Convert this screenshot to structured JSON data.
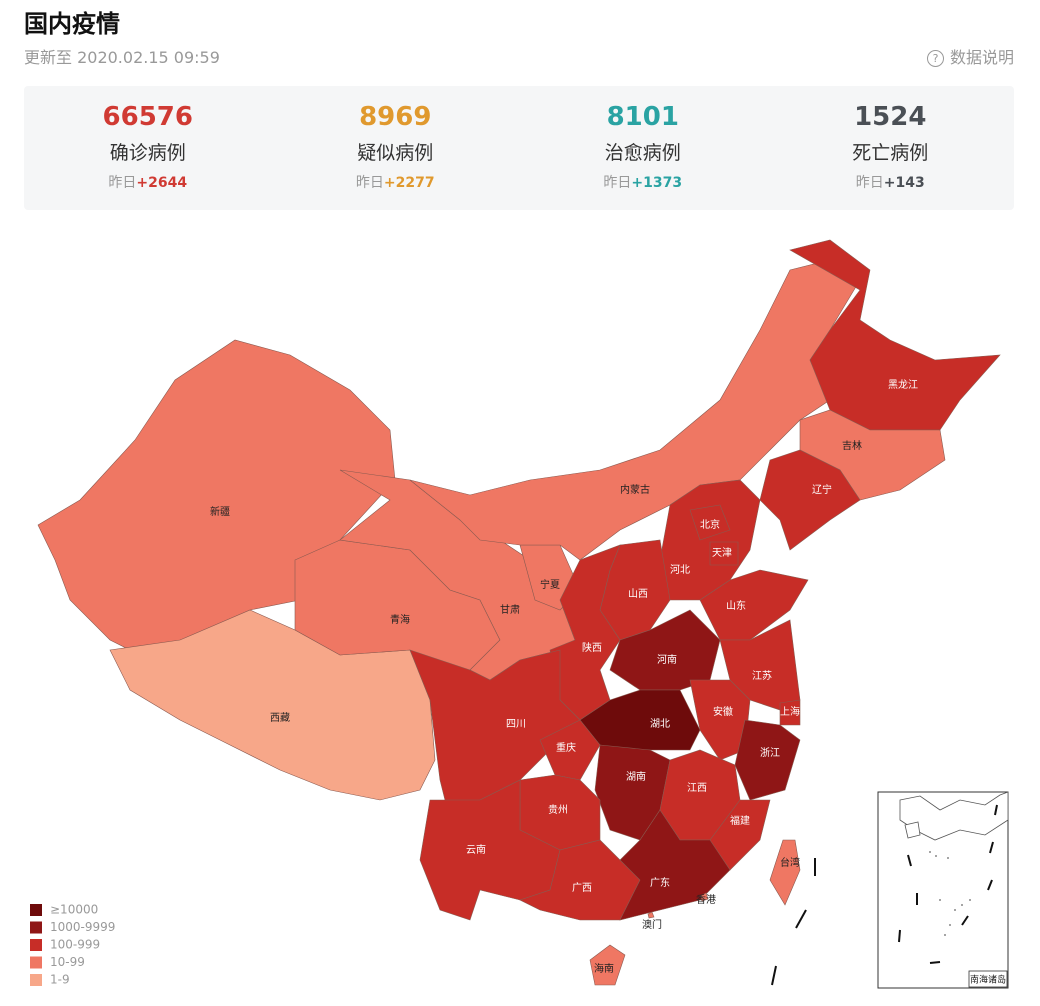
{
  "header": {
    "title": "国内疫情",
    "updated": "更新至 2020.02.15 09:59",
    "help": "数据说明"
  },
  "stats": [
    {
      "value": 66576,
      "label": "确诊病例",
      "prefix": "昨日",
      "delta": "+2644",
      "color": "#d03a33"
    },
    {
      "value": 8969,
      "label": "疑似病例",
      "prefix": "昨日",
      "delta": "+2277",
      "color": "#e0992e"
    },
    {
      "value": 8101,
      "label": "治愈病例",
      "prefix": "昨日",
      "delta": "+1373",
      "color": "#2aa3a3"
    },
    {
      "value": 1524,
      "label": "死亡病例",
      "prefix": "昨日",
      "delta": "+143",
      "color": "#4a4f55"
    }
  ],
  "legend": [
    {
      "label": "≥10000",
      "color": "#6e0b0b"
    },
    {
      "label": "1000-9999",
      "color": "#8f1616"
    },
    {
      "label": "100-999",
      "color": "#c72d27"
    },
    {
      "label": "10-99",
      "color": "#ef7763"
    },
    {
      "label": "1-9",
      "color": "#f7a789"
    }
  ],
  "provinces": [
    {
      "name": "新疆",
      "color": "#ef7763"
    },
    {
      "name": "西藏",
      "color": "#f7a789"
    },
    {
      "name": "青海",
      "color": "#ef7763"
    },
    {
      "name": "甘肃",
      "color": "#ef7763"
    },
    {
      "name": "宁夏",
      "color": "#ef7763"
    },
    {
      "name": "内蒙古",
      "color": "#ef7763"
    },
    {
      "name": "黑龙江",
      "color": "#c72d27"
    },
    {
      "name": "吉林",
      "color": "#ef7763"
    },
    {
      "name": "辽宁",
      "color": "#c72d27"
    },
    {
      "name": "河北",
      "color": "#c72d27"
    },
    {
      "name": "北京",
      "color": "#c72d27"
    },
    {
      "name": "天津",
      "color": "#c72d27"
    },
    {
      "name": "山西",
      "color": "#c72d27"
    },
    {
      "name": "山东",
      "color": "#c72d27"
    },
    {
      "name": "陕西",
      "color": "#c72d27"
    },
    {
      "name": "河南",
      "color": "#8f1616"
    },
    {
      "name": "江苏",
      "color": "#c72d27"
    },
    {
      "name": "安徽",
      "color": "#c72d27"
    },
    {
      "name": "上海",
      "color": "#c72d27"
    },
    {
      "name": "湖北",
      "color": "#6e0b0b"
    },
    {
      "name": "浙江",
      "color": "#8f1616"
    },
    {
      "name": "四川",
      "color": "#c72d27"
    },
    {
      "name": "重庆",
      "color": "#c72d27"
    },
    {
      "name": "湖南",
      "color": "#8f1616"
    },
    {
      "name": "江西",
      "color": "#c72d27"
    },
    {
      "name": "贵州",
      "color": "#c72d27"
    },
    {
      "name": "福建",
      "color": "#c72d27"
    },
    {
      "name": "云南",
      "color": "#c72d27"
    },
    {
      "name": "广西",
      "color": "#c72d27"
    },
    {
      "name": "广东",
      "color": "#8f1616"
    },
    {
      "name": "台湾",
      "color": "#ef7763"
    },
    {
      "name": "香港",
      "color": "#ef7763"
    },
    {
      "name": "澳门",
      "color": "#ef7763"
    },
    {
      "name": "海南",
      "color": "#ef7763"
    }
  ],
  "inset": {
    "label": "南海诸岛"
  }
}
